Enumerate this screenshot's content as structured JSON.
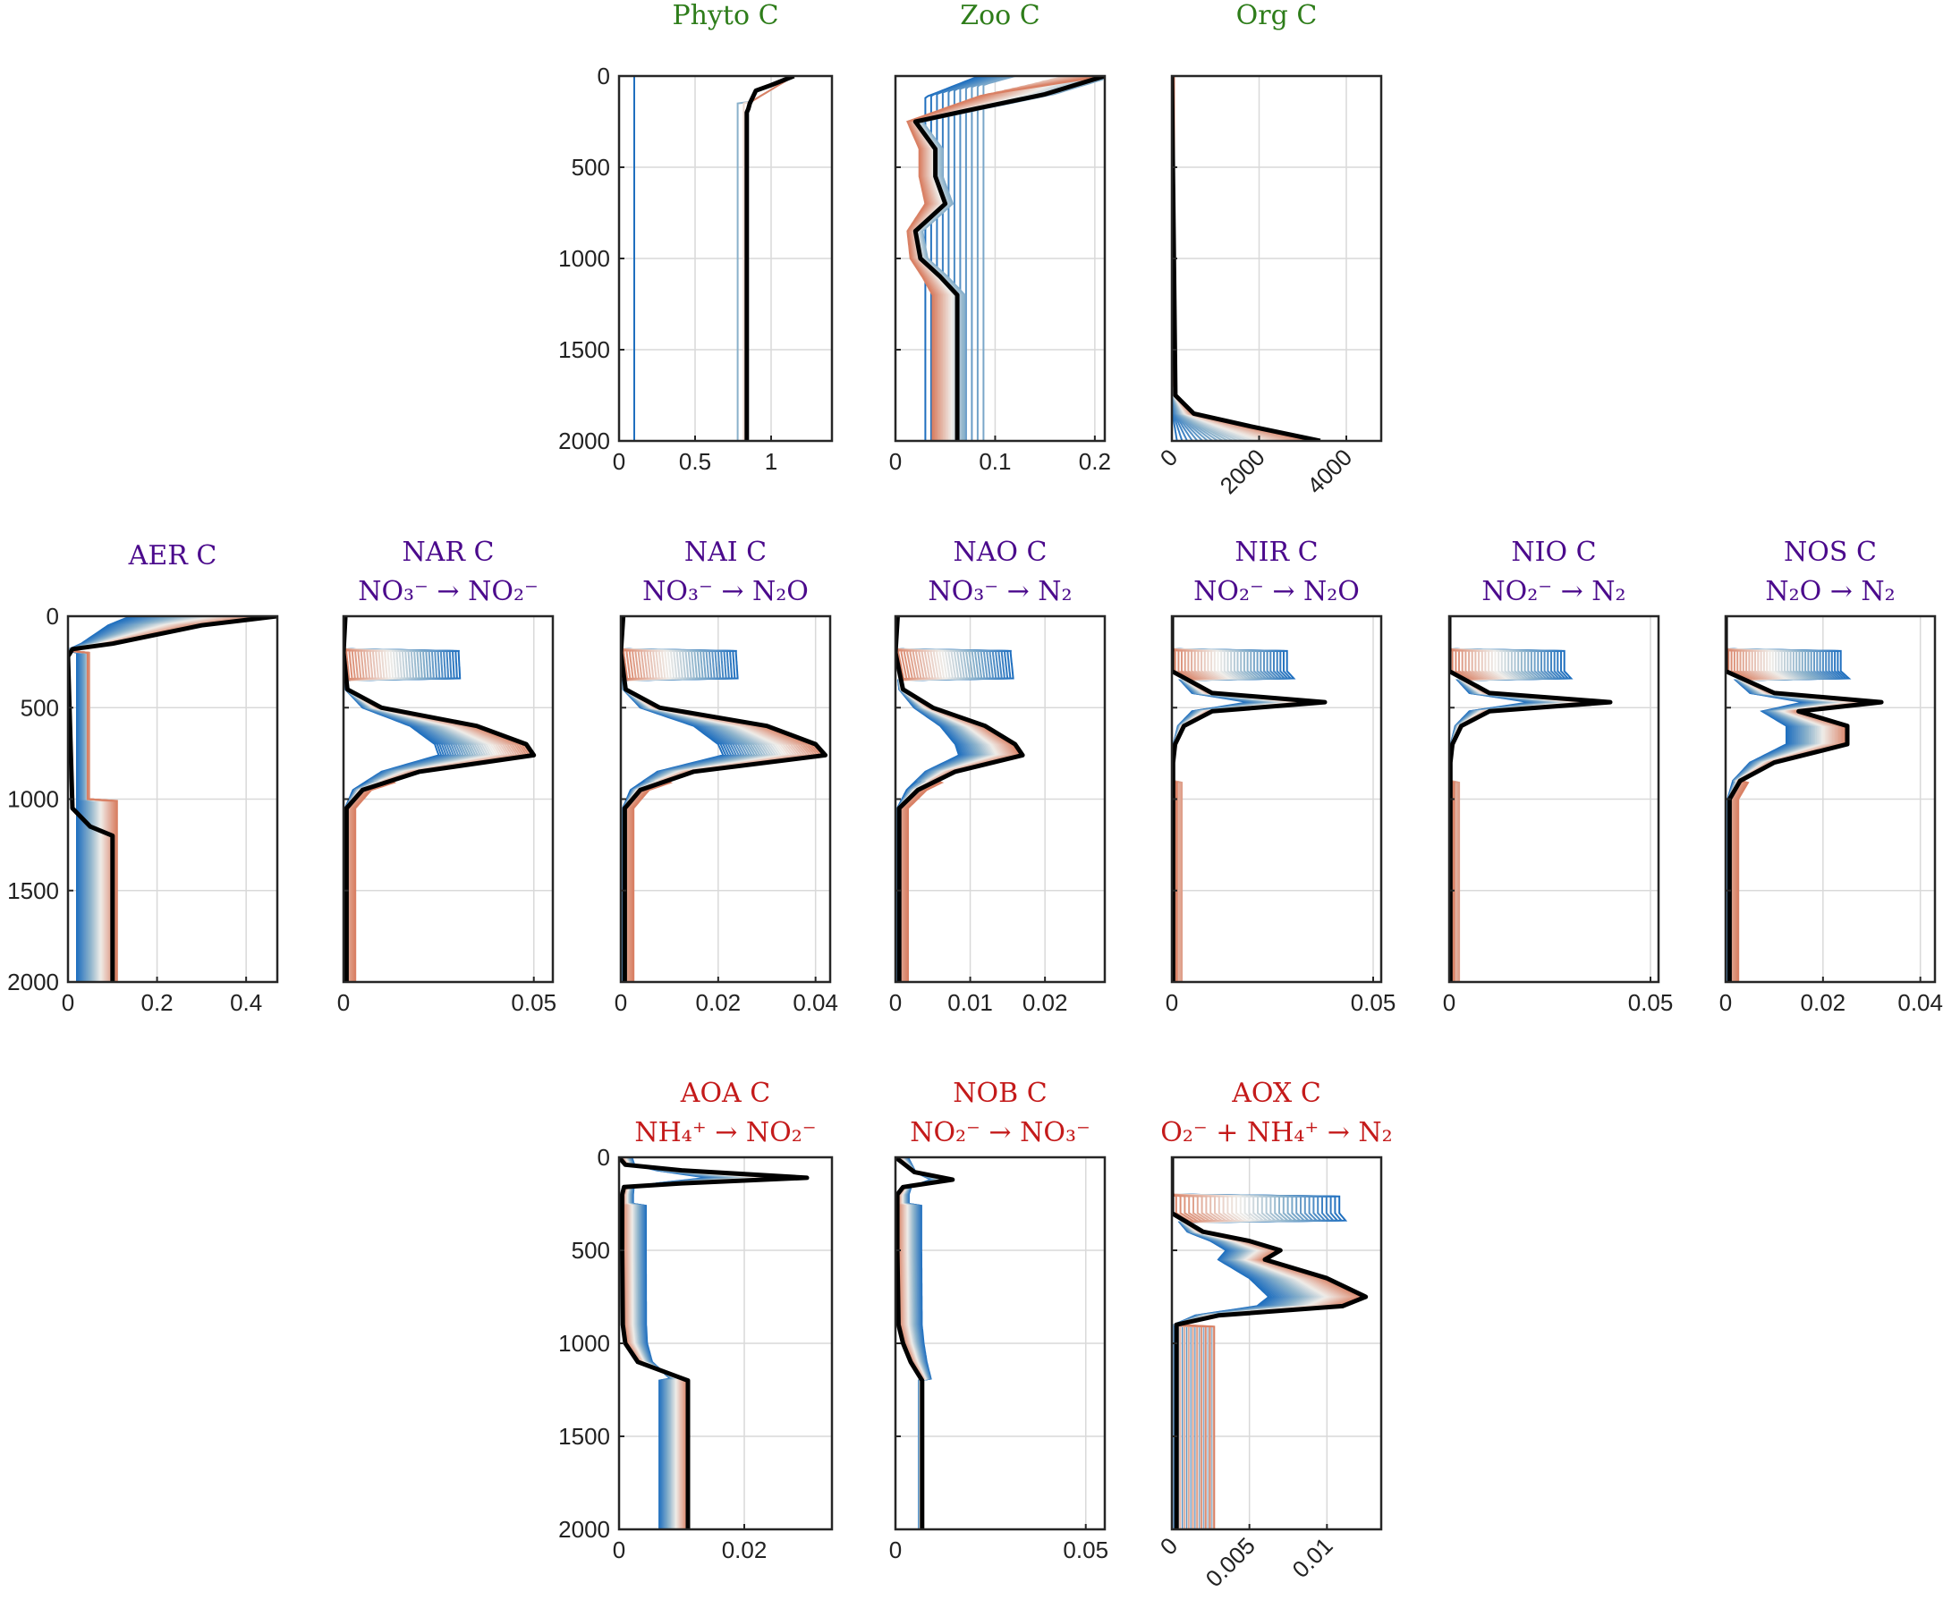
{
  "figure": {
    "group_colors": {
      "green": "#2e7d1a",
      "purple": "#4b0a8c",
      "red": "#c41a1a"
    },
    "highlight_color": "#000000",
    "line_palette": [
      "#1f6fbf",
      "#8fb4cc",
      "#d98064"
    ]
  },
  "chart_data": [
    {
      "type": "line",
      "title": "Phyto C",
      "subtitle": "",
      "group": "green",
      "ylim": [
        0,
        2000
      ],
      "yticks": [
        0,
        500,
        1000,
        1500,
        2000
      ],
      "yreverse": true,
      "xlim": [
        0,
        1.4
      ],
      "xticks": [
        0,
        0.5,
        1
      ],
      "xticklabels": [
        "0",
        "0.5",
        "1"
      ],
      "grid": true,
      "shape": "phyto",
      "lines": 4,
      "final_profile": {
        "depth": [
          0,
          50,
          80,
          150,
          180,
          200,
          2000
        ],
        "value": [
          1.15,
          1.0,
          0.9,
          0.86,
          0.85,
          0.84,
          0.84
        ]
      }
    },
    {
      "type": "line",
      "title": "Zoo C",
      "subtitle": "",
      "group": "green",
      "ylim": [
        0,
        2000
      ],
      "yreverse": true,
      "xlim": [
        0,
        0.21
      ],
      "xticks": [
        0,
        0.1,
        0.2
      ],
      "xticklabels": [
        "0",
        "0.1",
        "0.2"
      ],
      "grid": true,
      "shape": "zoo",
      "lines": 36,
      "final_profile": {
        "depth": [
          0,
          100,
          180,
          250,
          400,
          550,
          700,
          850,
          1000,
          1100,
          1200,
          2000
        ],
        "value": [
          0.21,
          0.15,
          0.08,
          0.02,
          0.04,
          0.04,
          0.05,
          0.02,
          0.025,
          0.045,
          0.062,
          0.062
        ]
      }
    },
    {
      "type": "line",
      "title": "Org C",
      "subtitle": "",
      "group": "green",
      "ylim": [
        0,
        2000
      ],
      "yreverse": true,
      "xlim": [
        0,
        4800
      ],
      "xticks": [
        0,
        2000,
        4000
      ],
      "xticklabels": [
        "0",
        "2000",
        "4000"
      ],
      "xtick_rotation": -45,
      "grid": true,
      "shape": "org",
      "lines": 30,
      "final_profile": {
        "depth": [
          0,
          1750,
          1850,
          1920,
          2000
        ],
        "value": [
          0,
          80,
          500,
          1800,
          3400
        ]
      }
    },
    {
      "type": "line",
      "title": "AER C",
      "subtitle": "",
      "group": "purple",
      "ylim": [
        0,
        2000
      ],
      "yticks": [
        0,
        500,
        1000,
        1500,
        2000
      ],
      "yreverse": true,
      "xlim": [
        0,
        0.47
      ],
      "xticks": [
        0,
        0.2,
        0.4
      ],
      "xticklabels": [
        "0",
        "0.2",
        "0.4"
      ],
      "grid": true,
      "shape": "aer",
      "lines": 40,
      "final_profile": {
        "depth": [
          0,
          50,
          150,
          180,
          220,
          1050,
          1150,
          1200,
          2000
        ],
        "value": [
          0.47,
          0.3,
          0.1,
          0.01,
          0.0,
          0.01,
          0.05,
          0.1,
          0.1
        ]
      }
    },
    {
      "type": "line",
      "title": "NAR C",
      "subtitle": "NO₃⁻ → NO₂⁻",
      "group": "purple",
      "ylim": [
        0,
        2000
      ],
      "yreverse": true,
      "xlim": [
        0,
        0.055
      ],
      "xticks": [
        0,
        0.05
      ],
      "xticklabels": [
        "0",
        "0.05"
      ],
      "grid": true,
      "shape": "nar",
      "lines": 40,
      "final_profile": {
        "depth": [
          0,
          200,
          400,
          500,
          600,
          700,
          760,
          850,
          950,
          1050,
          2000
        ],
        "value": [
          0.0005,
          0.0,
          0.001,
          0.01,
          0.035,
          0.048,
          0.05,
          0.02,
          0.005,
          0.0008,
          0.0008
        ]
      }
    },
    {
      "type": "line",
      "title": "NAI C",
      "subtitle": "NO₃⁻ → N₂O",
      "group": "purple",
      "ylim": [
        0,
        2000
      ],
      "yreverse": true,
      "xlim": [
        0,
        0.043
      ],
      "xticks": [
        0,
        0.02,
        0.04
      ],
      "xticklabels": [
        "0",
        "0.02",
        "0.04"
      ],
      "grid": true,
      "shape": "nai",
      "lines": 40,
      "final_profile": {
        "depth": [
          0,
          200,
          400,
          500,
          600,
          700,
          760,
          850,
          950,
          1050,
          2000
        ],
        "value": [
          0.0005,
          0.0,
          0.001,
          0.008,
          0.03,
          0.04,
          0.042,
          0.015,
          0.004,
          0.0008,
          0.0008
        ]
      }
    },
    {
      "type": "line",
      "title": "NAO C",
      "subtitle": "NO₃⁻ → N₂",
      "group": "purple",
      "ylim": [
        0,
        2000
      ],
      "yreverse": true,
      "xlim": [
        0,
        0.028
      ],
      "xticks": [
        0,
        0.01,
        0.02
      ],
      "xticklabels": [
        "0",
        "0.01",
        "0.02"
      ],
      "grid": true,
      "shape": "nao",
      "lines": 40,
      "final_profile": {
        "depth": [
          0,
          200,
          400,
          500,
          600,
          700,
          760,
          850,
          950,
          1050,
          2000
        ],
        "value": [
          0.0003,
          0.0,
          0.001,
          0.005,
          0.012,
          0.016,
          0.017,
          0.008,
          0.003,
          0.0005,
          0.0005
        ]
      }
    },
    {
      "type": "line",
      "title": "NIR C",
      "subtitle": "NO₂⁻ → N₂O",
      "group": "purple",
      "ylim": [
        0,
        2000
      ],
      "yreverse": true,
      "xlim": [
        0,
        0.052
      ],
      "xticks": [
        0,
        0.05
      ],
      "xticklabels": [
        "0",
        "0.05"
      ],
      "grid": true,
      "shape": "nir",
      "lines": 36,
      "final_profile": {
        "depth": [
          0,
          300,
          420,
          470,
          520,
          600,
          700,
          800,
          2000
        ],
        "value": [
          0.0,
          0.0,
          0.01,
          0.038,
          0.01,
          0.003,
          0.0008,
          0.0003,
          0.0003
        ]
      }
    },
    {
      "type": "line",
      "title": "NIO C",
      "subtitle": "NO₂⁻ → N₂",
      "group": "purple",
      "ylim": [
        0,
        2000
      ],
      "yreverse": true,
      "xlim": [
        0,
        0.052
      ],
      "xticks": [
        0,
        0.05
      ],
      "xticklabels": [
        "0",
        "0.05"
      ],
      "grid": true,
      "shape": "nio",
      "lines": 36,
      "final_profile": {
        "depth": [
          0,
          300,
          420,
          470,
          520,
          600,
          700,
          800,
          2000
        ],
        "value": [
          0.0,
          0.0,
          0.01,
          0.04,
          0.01,
          0.003,
          0.0008,
          0.0003,
          0.0003
        ]
      }
    },
    {
      "type": "line",
      "title": "NOS C",
      "subtitle": "N₂O → N₂",
      "group": "purple",
      "ylim": [
        0,
        2000
      ],
      "yreverse": true,
      "xlim": [
        0,
        0.043
      ],
      "xticks": [
        0,
        0.02,
        0.04
      ],
      "xticklabels": [
        "0",
        "0.02",
        "0.04"
      ],
      "grid": true,
      "shape": "nos",
      "lines": 40,
      "final_profile": {
        "depth": [
          0,
          300,
          420,
          470,
          520,
          560,
          600,
          700,
          800,
          900,
          1000,
          2000
        ],
        "value": [
          0.0,
          0.0,
          0.01,
          0.032,
          0.015,
          0.02,
          0.025,
          0.025,
          0.01,
          0.003,
          0.0008,
          0.0008
        ]
      }
    },
    {
      "type": "line",
      "title": "AOA C",
      "subtitle": "NH₄⁺ → NO₂⁻",
      "group": "red",
      "ylim": [
        0,
        2000
      ],
      "yticks": [
        0,
        500,
        1000,
        1500,
        2000
      ],
      "yreverse": true,
      "xlim": [
        0,
        0.034
      ],
      "xticks": [
        0,
        0.02
      ],
      "xticklabels": [
        "0",
        "0.02"
      ],
      "grid": true,
      "shape": "aoa",
      "lines": 40,
      "final_profile": {
        "depth": [
          0,
          40,
          70,
          110,
          140,
          160,
          200,
          500,
          900,
          1000,
          1100,
          1200,
          2000
        ],
        "value": [
          0.0,
          0.001,
          0.01,
          0.03,
          0.01,
          0.0008,
          0.0005,
          0.0005,
          0.0006,
          0.001,
          0.003,
          0.011,
          0.011
        ]
      }
    },
    {
      "type": "line",
      "title": "NOB C",
      "subtitle": "NO₂⁻ → NO₃⁻",
      "group": "red",
      "ylim": [
        0,
        2000
      ],
      "yreverse": true,
      "xlim": [
        0,
        0.055
      ],
      "xticks": [
        0,
        0.05
      ],
      "xticklabels": [
        "0",
        "0.05"
      ],
      "grid": true,
      "shape": "nob",
      "lines": 40,
      "final_profile": {
        "depth": [
          0,
          80,
          120,
          160,
          200,
          500,
          900,
          1000,
          1100,
          1200,
          2000
        ],
        "value": [
          0.0,
          0.005,
          0.015,
          0.002,
          0.0005,
          0.0005,
          0.0008,
          0.002,
          0.004,
          0.007,
          0.007
        ]
      }
    },
    {
      "type": "line",
      "title": "AOX C",
      "subtitle": "O₂⁻ + NH₄⁺ → N₂",
      "group": "red",
      "ylim": [
        0,
        2000
      ],
      "yreverse": true,
      "xlim": [
        0,
        0.0135
      ],
      "xticks": [
        0,
        0.005,
        0.01
      ],
      "xticklabels": [
        "0",
        "0.005",
        "0.01"
      ],
      "xtick_rotation": -45,
      "grid": true,
      "shape": "aox",
      "lines": 40,
      "final_profile": {
        "depth": [
          0,
          300,
          400,
          450,
          500,
          550,
          650,
          750,
          800,
          850,
          900,
          2000
        ],
        "value": [
          0.0,
          0.0,
          0.002,
          0.005,
          0.007,
          0.006,
          0.01,
          0.0125,
          0.011,
          0.003,
          0.0003,
          0.0003
        ]
      }
    }
  ]
}
